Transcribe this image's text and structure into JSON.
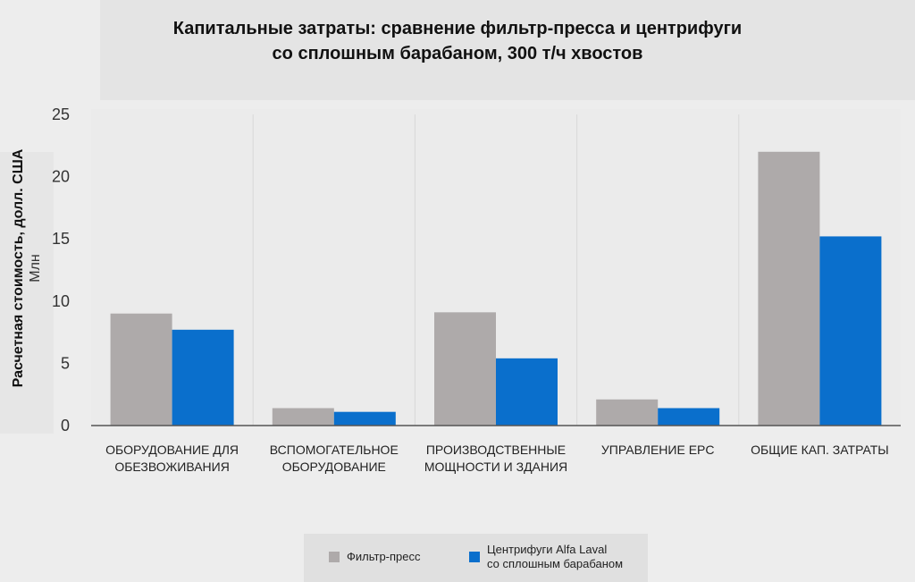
{
  "chart_data": {
    "type": "bar",
    "title_lines": [
      "Капитальные затраты: сравнение фильтр-пресса и центрифуги",
      "со сплошным барабаном, 300 т/ч хвостов"
    ],
    "ylabel": "Расчетная стоимость, долл. США",
    "ylabel_unit": "Млн",
    "ylim": [
      0,
      25
    ],
    "yticks": [
      "0",
      "5",
      "10",
      "15",
      "20",
      "25"
    ],
    "categories": [
      [
        "ОБОРУДОВАНИЕ ДЛЯ",
        "ОБЕЗВОЖИВАНИЯ"
      ],
      [
        "ВСПОМОГАТЕЛЬНОЕ",
        "ОБОРУДОВАНИЕ"
      ],
      [
        "ПРОИЗВОДСТВЕННЫЕ",
        "МОЩНОСТИ И ЗДАНИЯ"
      ],
      [
        "УПРАВЛЕНИЕ EPC"
      ],
      [
        "ОБЩИЕ КАП. ЗАТРАТЫ"
      ]
    ],
    "series": [
      {
        "name": "Фильтр-пресс",
        "color": "#aeaaaa",
        "values": [
          9.0,
          1.4,
          9.1,
          2.1,
          22.0
        ]
      },
      {
        "name": "Центрифуги Alfa Laval со сплошным барабаном",
        "color": "#0a6fcc",
        "values": [
          7.7,
          1.1,
          5.4,
          1.4,
          15.2
        ]
      }
    ],
    "legend": {
      "position": "bottom",
      "entries": [
        [
          "Фильтр-пресс"
        ],
        [
          "Центрифуги Alfa Laval",
          "со сплошным барабаном"
        ]
      ]
    },
    "grid": true
  }
}
